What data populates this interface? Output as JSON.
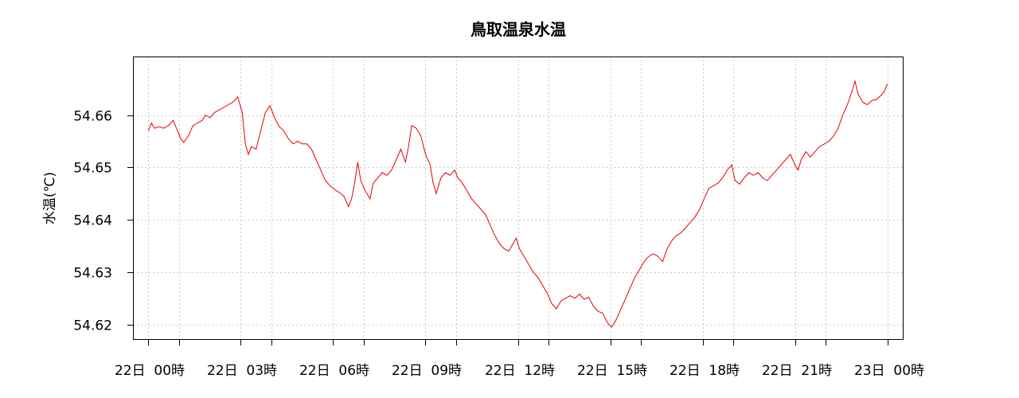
{
  "chart_data": {
    "type": "line",
    "title": "鳥取温泉水温",
    "ylabel": "水温(℃)",
    "xlabel": "",
    "grid": true,
    "ylim": [
      54.6172,
      54.6712
    ],
    "xlim": [
      -0.5,
      24.5
    ],
    "y_ticks": [
      54.62,
      54.63,
      54.64,
      54.65,
      54.66
    ],
    "y_tick_labels": [
      "54.62",
      "54.63",
      "54.64",
      "54.65",
      "54.66"
    ],
    "x_major_ticks": [
      {
        "hour": 0,
        "label": "22日 00時"
      },
      {
        "hour": 3,
        "label": "22日 03時"
      },
      {
        "hour": 6,
        "label": "22日 06時"
      },
      {
        "hour": 9,
        "label": "22日 09時"
      },
      {
        "hour": 12,
        "label": "22日 12時"
      },
      {
        "hour": 15,
        "label": "22日 15時"
      },
      {
        "hour": 18,
        "label": "22日 18時"
      },
      {
        "hour": 21,
        "label": "22日 21時"
      },
      {
        "hour": 24,
        "label": "23日 00時"
      }
    ],
    "x_minor_ticks": [
      1,
      4,
      7,
      10,
      13,
      16,
      19,
      22
    ],
    "series": [
      {
        "color": "#e60000",
        "x_unit": "hours since 22日 00時",
        "points": [
          [
            0.0,
            54.657
          ],
          [
            0.1,
            54.6585
          ],
          [
            0.2,
            54.6575
          ],
          [
            0.35,
            54.6578
          ],
          [
            0.5,
            54.6575
          ],
          [
            0.65,
            54.658
          ],
          [
            0.8,
            54.659
          ],
          [
            0.95,
            54.657
          ],
          [
            1.05,
            54.6555
          ],
          [
            1.15,
            54.6548
          ],
          [
            1.3,
            54.656
          ],
          [
            1.45,
            54.658
          ],
          [
            1.6,
            54.6585
          ],
          [
            1.75,
            54.659
          ],
          [
            1.85,
            54.66
          ],
          [
            2.0,
            54.6595
          ],
          [
            2.15,
            54.6605
          ],
          [
            2.3,
            54.661
          ],
          [
            2.45,
            54.6615
          ],
          [
            2.6,
            54.662
          ],
          [
            2.75,
            54.6625
          ],
          [
            2.9,
            54.6635
          ],
          [
            3.05,
            54.6605
          ],
          [
            3.15,
            54.6545
          ],
          [
            3.25,
            54.6525
          ],
          [
            3.35,
            54.654
          ],
          [
            3.5,
            54.6535
          ],
          [
            3.65,
            54.657
          ],
          [
            3.8,
            54.6605
          ],
          [
            3.95,
            54.6618
          ],
          [
            4.1,
            54.6595
          ],
          [
            4.25,
            54.6578
          ],
          [
            4.4,
            54.657
          ],
          [
            4.55,
            54.6555
          ],
          [
            4.7,
            54.6545
          ],
          [
            4.85,
            54.655
          ],
          [
            5.0,
            54.6545
          ],
          [
            5.15,
            54.6545
          ],
          [
            5.3,
            54.6535
          ],
          [
            5.45,
            54.6515
          ],
          [
            5.6,
            54.6495
          ],
          [
            5.75,
            54.6475
          ],
          [
            5.9,
            54.6465
          ],
          [
            6.05,
            54.6458
          ],
          [
            6.2,
            54.6452
          ],
          [
            6.35,
            54.6445
          ],
          [
            6.5,
            54.6425
          ],
          [
            6.6,
            54.644
          ],
          [
            6.7,
            54.647
          ],
          [
            6.8,
            54.651
          ],
          [
            6.9,
            54.6475
          ],
          [
            7.0,
            54.646
          ],
          [
            7.1,
            54.645
          ],
          [
            7.2,
            54.644
          ],
          [
            7.3,
            54.647
          ],
          [
            7.45,
            54.648
          ],
          [
            7.6,
            54.649
          ],
          [
            7.75,
            54.6485
          ],
          [
            7.9,
            54.6495
          ],
          [
            8.05,
            54.6515
          ],
          [
            8.2,
            54.6535
          ],
          [
            8.35,
            54.651
          ],
          [
            8.45,
            54.654
          ],
          [
            8.55,
            54.658
          ],
          [
            8.7,
            54.6575
          ],
          [
            8.85,
            54.656
          ],
          [
            9.0,
            54.6525
          ],
          [
            9.15,
            54.6505
          ],
          [
            9.25,
            54.647
          ],
          [
            9.35,
            54.645
          ],
          [
            9.5,
            54.648
          ],
          [
            9.65,
            54.649
          ],
          [
            9.8,
            54.6485
          ],
          [
            9.95,
            54.6495
          ],
          [
            10.05,
            54.648
          ],
          [
            10.2,
            54.647
          ],
          [
            10.35,
            54.6455
          ],
          [
            10.5,
            54.644
          ],
          [
            10.65,
            54.643
          ],
          [
            10.8,
            54.642
          ],
          [
            10.95,
            54.641
          ],
          [
            11.1,
            54.639
          ],
          [
            11.25,
            54.637
          ],
          [
            11.4,
            54.6355
          ],
          [
            11.55,
            54.6345
          ],
          [
            11.7,
            54.634
          ],
          [
            11.85,
            54.6355
          ],
          [
            11.95,
            54.6365
          ],
          [
            12.05,
            54.6345
          ],
          [
            12.2,
            54.633
          ],
          [
            12.35,
            54.6315
          ],
          [
            12.5,
            54.63
          ],
          [
            12.65,
            54.629
          ],
          [
            12.8,
            54.6275
          ],
          [
            12.95,
            54.626
          ],
          [
            13.1,
            54.624
          ],
          [
            13.25,
            54.623
          ],
          [
            13.4,
            54.6245
          ],
          [
            13.55,
            54.625
          ],
          [
            13.7,
            54.6255
          ],
          [
            13.85,
            54.625
          ],
          [
            14.0,
            54.6258
          ],
          [
            14.15,
            54.6248
          ],
          [
            14.3,
            54.6252
          ],
          [
            14.45,
            54.6235
          ],
          [
            14.6,
            54.6225
          ],
          [
            14.75,
            54.6222
          ],
          [
            14.85,
            54.621
          ],
          [
            14.95,
            54.62
          ],
          [
            15.05,
            54.6195
          ],
          [
            15.2,
            54.621
          ],
          [
            15.35,
            54.623
          ],
          [
            15.5,
            54.625
          ],
          [
            15.65,
            54.627
          ],
          [
            15.8,
            54.629
          ],
          [
            15.95,
            54.6305
          ],
          [
            16.1,
            54.632
          ],
          [
            16.25,
            54.633
          ],
          [
            16.4,
            54.6335
          ],
          [
            16.55,
            54.633
          ],
          [
            16.7,
            54.632
          ],
          [
            16.85,
            54.6345
          ],
          [
            17.0,
            54.636
          ],
          [
            17.15,
            54.637
          ],
          [
            17.3,
            54.6375
          ],
          [
            17.45,
            54.6385
          ],
          [
            17.6,
            54.6395
          ],
          [
            17.75,
            54.6405
          ],
          [
            17.9,
            54.642
          ],
          [
            18.05,
            54.644
          ],
          [
            18.2,
            54.646
          ],
          [
            18.35,
            54.6465
          ],
          [
            18.5,
            54.647
          ],
          [
            18.65,
            54.648
          ],
          [
            18.8,
            54.6495
          ],
          [
            18.95,
            54.6505
          ],
          [
            19.05,
            54.6475
          ],
          [
            19.2,
            54.6468
          ],
          [
            19.35,
            54.648
          ],
          [
            19.5,
            54.649
          ],
          [
            19.65,
            54.6485
          ],
          [
            19.8,
            54.649
          ],
          [
            19.95,
            54.648
          ],
          [
            20.1,
            54.6475
          ],
          [
            20.25,
            54.6485
          ],
          [
            20.4,
            54.6495
          ],
          [
            20.55,
            54.6505
          ],
          [
            20.7,
            54.6515
          ],
          [
            20.85,
            54.6525
          ],
          [
            21.0,
            54.6505
          ],
          [
            21.1,
            54.6495
          ],
          [
            21.2,
            54.6515
          ],
          [
            21.35,
            54.653
          ],
          [
            21.5,
            54.652
          ],
          [
            21.65,
            54.653
          ],
          [
            21.8,
            54.654
          ],
          [
            21.95,
            54.6545
          ],
          [
            22.1,
            54.655
          ],
          [
            22.25,
            54.656
          ],
          [
            22.4,
            54.6575
          ],
          [
            22.55,
            54.66
          ],
          [
            22.7,
            54.662
          ],
          [
            22.85,
            54.6645
          ],
          [
            22.95,
            54.6665
          ],
          [
            23.05,
            54.664
          ],
          [
            23.2,
            54.6625
          ],
          [
            23.35,
            54.662
          ],
          [
            23.5,
            54.6628
          ],
          [
            23.65,
            54.663
          ],
          [
            23.8,
            54.6638
          ],
          [
            23.9,
            54.6645
          ],
          [
            24.0,
            54.666
          ]
        ]
      }
    ]
  }
}
